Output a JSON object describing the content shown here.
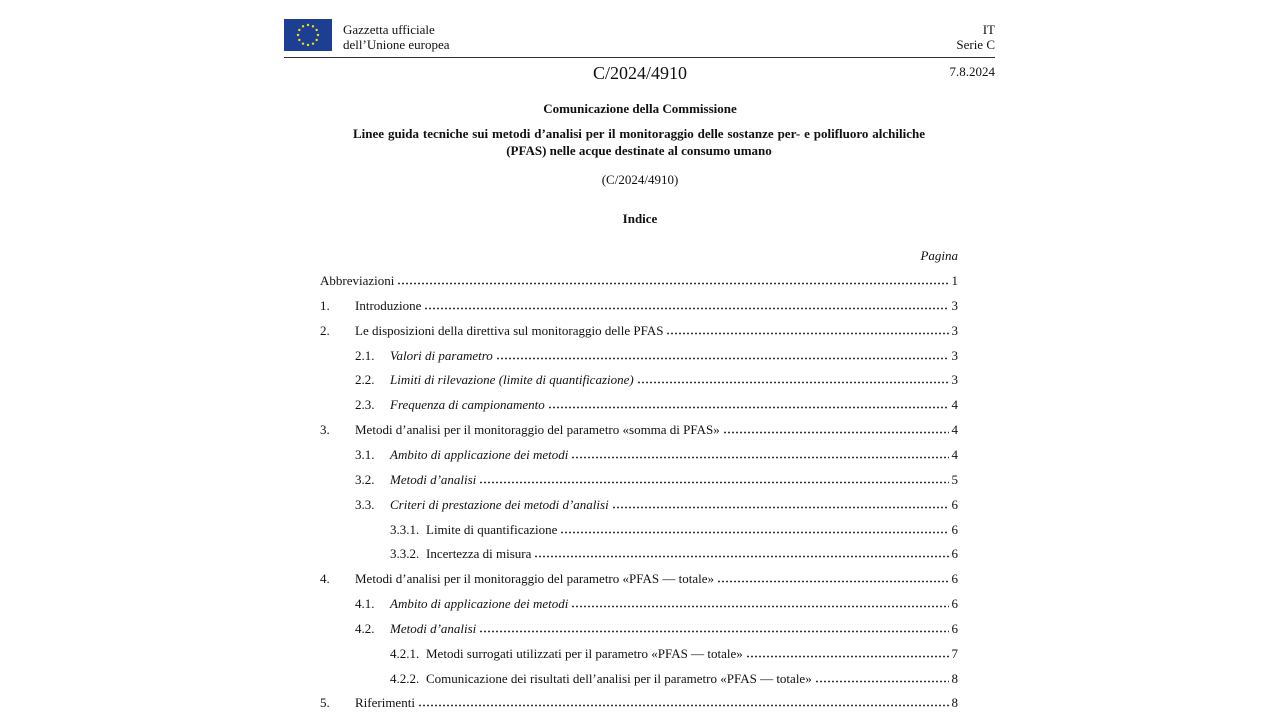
{
  "header": {
    "publication": [
      "Gazzetta ufficiale",
      "dell’Unione europea"
    ],
    "language": "IT",
    "series": "Serie C",
    "doc_id": "C/2024/4910",
    "date": "7.8.2024"
  },
  "title": "Comunicazione della Commissione",
  "subtitle": "Linee guida tecniche sui metodi d’analisi per il monitoraggio delle sostanze per- e polifluoro alchiliche (PFAS) nelle acque destinate al consumo umano",
  "reference": "(C/2024/4910)",
  "index_title": "Indice",
  "page_column": "Pagina",
  "toc": [
    {
      "level": 1,
      "label": "Abbreviazioni",
      "page": "1"
    },
    {
      "level": 1,
      "num": "1.",
      "label": "Introduzione",
      "page": "3"
    },
    {
      "level": 1,
      "num": "2.",
      "label": "Le disposizioni della direttiva sul monitoraggio delle PFAS",
      "page": "3"
    },
    {
      "level": 2,
      "num": "2.1.",
      "label": "Valori di parametro",
      "page": "3"
    },
    {
      "level": 2,
      "num": "2.2.",
      "label": "Limiti di rilevazione (limite di quantificazione)",
      "page": "3"
    },
    {
      "level": 2,
      "num": "2.3.",
      "label": "Frequenza di campionamento",
      "page": "4"
    },
    {
      "level": 1,
      "num": "3.",
      "label": "Metodi d’analisi per il monitoraggio del parametro «somma di PFAS»",
      "page": "4"
    },
    {
      "level": 2,
      "num": "3.1.",
      "label": "Ambito di applicazione dei metodi",
      "page": "4"
    },
    {
      "level": 2,
      "num": "3.2.",
      "label": "Metodi d’analisi",
      "page": "5"
    },
    {
      "level": 2,
      "num": "3.3.",
      "label": "Criteri di prestazione dei metodi d’analisi",
      "page": "6"
    },
    {
      "level": 3,
      "num": "3.3.1.",
      "label": "Limite di quantificazione",
      "page": "6"
    },
    {
      "level": 3,
      "num": "3.3.2.",
      "label": "Incertezza di misura",
      "page": "6"
    },
    {
      "level": 1,
      "num": "4.",
      "label": "Metodi d’analisi per il monitoraggio del parametro «PFAS — totale»",
      "page": "6"
    },
    {
      "level": 2,
      "num": "4.1.",
      "label": "Ambito di applicazione dei metodi",
      "page": "6"
    },
    {
      "level": 2,
      "num": "4.2.",
      "label": "Metodi d’analisi",
      "page": "6"
    },
    {
      "level": 3,
      "num": "4.2.1.",
      "label": "Metodi surrogati utilizzati per il parametro «PFAS — totale»",
      "page": "7"
    },
    {
      "level": 3,
      "num": "4.2.2.",
      "label": "Comunicazione dei risultati dell’analisi per il parametro «PFAS — totale»",
      "page": "8"
    },
    {
      "level": 1,
      "num": "5.",
      "label": "Riferimenti",
      "page": "8"
    }
  ]
}
